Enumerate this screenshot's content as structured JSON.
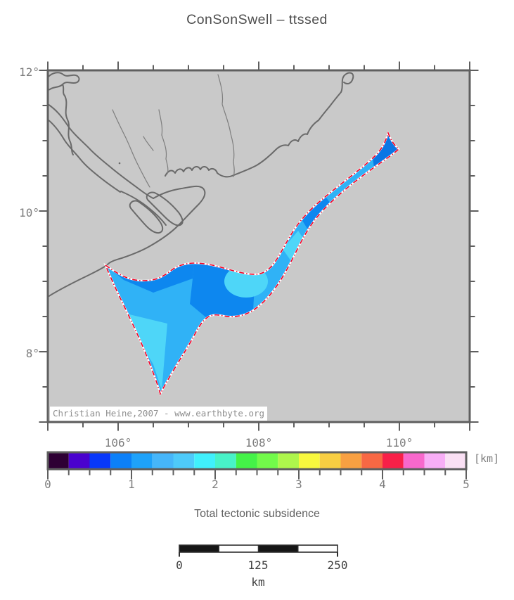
{
  "title": "ConSonSwell – ttssed",
  "map": {
    "lat_labels": [
      "12°",
      "10°",
      "8°"
    ],
    "lon_labels": [
      "106°",
      "108°",
      "110°"
    ],
    "attribution": "Christian Heine,2007 - www.earthbyte.org",
    "background_color": "#c9c9c9",
    "coastline_color": "#6a6a6a",
    "river_color": "#7e7e7e",
    "frame_color": "#5f5f5f",
    "region_outline_color": "#f40024",
    "subsidence_fill_base": "#30b2f6",
    "subsidence_fill_dark": "#0d87ef",
    "subsidence_fill_darker": "#0a76e4",
    "subsidence_fill_light": "#4ed6f8"
  },
  "colorbar": {
    "unit_label": "[km]",
    "tick_labels": [
      "0",
      "1",
      "2",
      "3",
      "4",
      "5"
    ],
    "value_range_km": [
      0,
      5
    ],
    "segment_colors": [
      "#2e0034",
      "#4a02ce",
      "#0838fa",
      "#0c80f8",
      "#1ea2fa",
      "#46b6fa",
      "#4ecafa",
      "#40f0fc",
      "#48f2c8",
      "#44f248",
      "#72fa4a",
      "#aef64c",
      "#f8f83e",
      "#f8ce42",
      "#f8a042",
      "#f86844",
      "#f82048",
      "#f868cc",
      "#f8aef6",
      "#fae0f4"
    ]
  },
  "caption": "Total tectonic subsidence",
  "scalebar": {
    "tick_labels": [
      "0",
      "125",
      "250"
    ],
    "unit_label": "km"
  }
}
